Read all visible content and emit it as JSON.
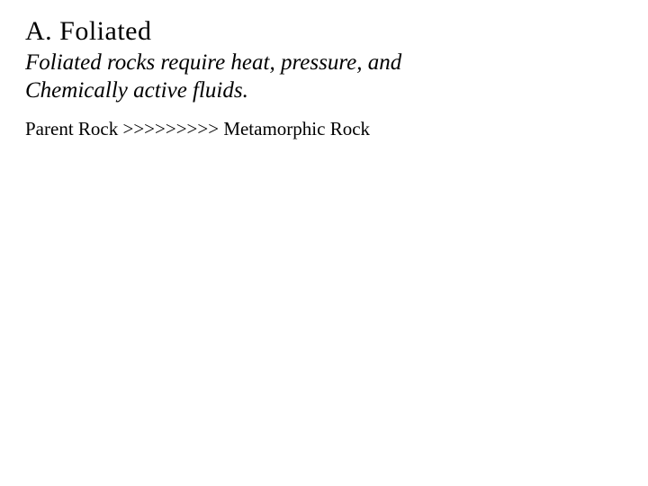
{
  "heading": "A.  Foliated",
  "subtitle_line1": "Foliated rocks require heat, pressure, and",
  "subtitle_line2": "Chemically active fluids.",
  "body_line": "Parent Rock >>>>>>>>>  Metamorphic Rock",
  "colors": {
    "background": "#ffffff",
    "text": "#000000"
  },
  "typography": {
    "font_family": "Times New Roman",
    "heading_fontsize": 30,
    "subtitle_fontsize": 25,
    "body_fontsize": 21,
    "subtitle_style": "italic"
  }
}
